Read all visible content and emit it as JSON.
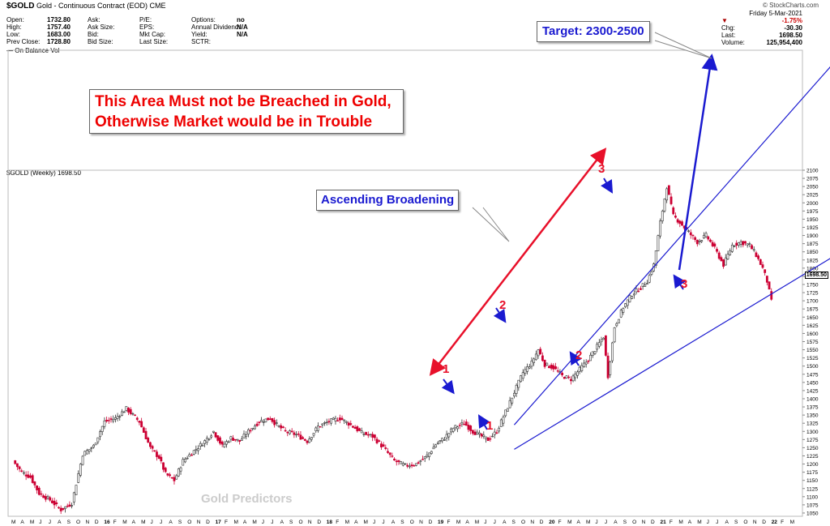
{
  "header": {
    "symbol": "$GOLD",
    "description": "Gold - Continuous Contract (EOD)",
    "exchange": "CME",
    "brand": "© StockCharts.com",
    "fields": [
      {
        "label": "Open:",
        "value": "1732.80"
      },
      {
        "label": "High:",
        "value": "1757.40"
      },
      {
        "label": "Low:",
        "value": "1683.00"
      },
      {
        "label": "Prev Close:",
        "value": "1728.80"
      },
      {
        "label": "Ask:",
        "value": ""
      },
      {
        "label": "Ask Size:",
        "value": ""
      },
      {
        "label": "Bid:",
        "value": ""
      },
      {
        "label": "Bid Size:",
        "value": ""
      },
      {
        "label": "P/E:",
        "value": ""
      },
      {
        "label": "EPS:",
        "value": ""
      },
      {
        "label": "Mkt Cap:",
        "value": ""
      },
      {
        "label": "Last Size:",
        "value": ""
      },
      {
        "label": "Options:",
        "value": "no"
      },
      {
        "label": "Annual Dividend:",
        "value": "N/A"
      },
      {
        "label": "Yield:",
        "value": "N/A"
      },
      {
        "label": "SCTR:",
        "value": ""
      }
    ],
    "date": "Friday 5-Mar-2021",
    "change_pct": "-1.75%",
    "right": [
      {
        "label": "Chg:",
        "value": "-30.30"
      },
      {
        "label": "Last:",
        "value": "1698.50"
      },
      {
        "label": "Volume:",
        "value": "125,954,400"
      }
    ]
  },
  "obv_label": "— On Balance Vol",
  "pane_label": "$GOLD (Weekly) 1698.50",
  "last_price_tag": "1698.50",
  "annotations": {
    "warning": "This Area Must not be Breached in Gold, Otherwise Market would be in Trouble",
    "pattern": "Ascending Broadening",
    "target": "Target: 2300-2500",
    "watermark": "Gold Predictors"
  },
  "colors": {
    "up": "#555555",
    "down": "#cc0033",
    "trend": "#1a1ad0",
    "arrow_red": "#e8102a"
  },
  "chart_data": {
    "type": "candlestick",
    "title": "$GOLD (Weekly)",
    "ylim": [
      1040,
      2100
    ],
    "y_ticks": [
      1050,
      1075,
      1100,
      1125,
      1150,
      1175,
      1200,
      1225,
      1250,
      1275,
      1300,
      1325,
      1350,
      1375,
      1400,
      1425,
      1450,
      1475,
      1500,
      1525,
      1550,
      1575,
      1600,
      1625,
      1650,
      1675,
      1700,
      1725,
      1750,
      1775,
      1800,
      1825,
      1850,
      1875,
      1900,
      1925,
      1950,
      1975,
      2000,
      2025,
      2050,
      2075,
      2100
    ],
    "x_ticks": [
      "M",
      "A",
      "M",
      "J",
      "J",
      "A",
      "S",
      "O",
      "N",
      "D",
      "16",
      "F",
      "M",
      "A",
      "M",
      "J",
      "J",
      "A",
      "S",
      "O",
      "N",
      "D",
      "17",
      "F",
      "M",
      "A",
      "M",
      "J",
      "J",
      "A",
      "S",
      "O",
      "N",
      "D",
      "18",
      "F",
      "M",
      "A",
      "M",
      "J",
      "J",
      "A",
      "S",
      "O",
      "N",
      "D",
      "19",
      "F",
      "M",
      "A",
      "M",
      "J",
      "J",
      "A",
      "S",
      "O",
      "N",
      "D",
      "20",
      "F",
      "M",
      "A",
      "M",
      "J",
      "J",
      "A",
      "S",
      "O",
      "N",
      "D",
      "21",
      "F",
      "M",
      "A",
      "M",
      "J",
      "J",
      "A",
      "S",
      "O",
      "N",
      "D",
      "22",
      "F",
      "M"
    ],
    "anchors": [
      [
        0,
        1210
      ],
      [
        4,
        1175
      ],
      [
        8,
        1160
      ],
      [
        12,
        1110
      ],
      [
        17,
        1090
      ],
      [
        22,
        1060
      ],
      [
        27,
        1080
      ],
      [
        32,
        1230
      ],
      [
        37,
        1255
      ],
      [
        42,
        1330
      ],
      [
        47,
        1340
      ],
      [
        52,
        1370
      ],
      [
        58,
        1330
      ],
      [
        63,
        1250
      ],
      [
        67,
        1220
      ],
      [
        70,
        1170
      ],
      [
        74,
        1150
      ],
      [
        78,
        1210
      ],
      [
        83,
        1240
      ],
      [
        88,
        1270
      ],
      [
        92,
        1300
      ],
      [
        96,
        1255
      ],
      [
        100,
        1280
      ],
      [
        104,
        1270
      ],
      [
        108,
        1300
      ],
      [
        113,
        1330
      ],
      [
        118,
        1340
      ],
      [
        121,
        1320
      ],
      [
        125,
        1300
      ],
      [
        130,
        1290
      ],
      [
        135,
        1270
      ],
      [
        140,
        1315
      ],
      [
        145,
        1330
      ],
      [
        150,
        1340
      ],
      [
        155,
        1320
      ],
      [
        160,
        1295
      ],
      [
        165,
        1285
      ],
      [
        170,
        1250
      ],
      [
        175,
        1210
      ],
      [
        180,
        1195
      ],
      [
        185,
        1200
      ],
      [
        190,
        1225
      ],
      [
        194,
        1260
      ],
      [
        198,
        1280
      ],
      [
        202,
        1310
      ],
      [
        207,
        1325
      ],
      [
        211,
        1300
      ],
      [
        215,
        1285
      ],
      [
        218,
        1275
      ],
      [
        222,
        1300
      ],
      [
        226,
        1360
      ],
      [
        230,
        1420
      ],
      [
        234,
        1480
      ],
      [
        238,
        1510
      ],
      [
        241,
        1550
      ],
      [
        244,
        1505
      ],
      [
        248,
        1495
      ],
      [
        252,
        1470
      ],
      [
        256,
        1460
      ],
      [
        260,
        1490
      ],
      [
        264,
        1520
      ],
      [
        268,
        1560
      ],
      [
        271,
        1590
      ],
      [
        273,
        1470
      ],
      [
        276,
        1620
      ],
      [
        280,
        1680
      ],
      [
        284,
        1720
      ],
      [
        288,
        1740
      ],
      [
        291,
        1760
      ],
      [
        294,
        1810
      ],
      [
        297,
        1940
      ],
      [
        300,
        2050
      ],
      [
        303,
        1960
      ],
      [
        306,
        1940
      ],
      [
        310,
        1910
      ],
      [
        314,
        1880
      ],
      [
        318,
        1900
      ],
      [
        322,
        1860
      ],
      [
        326,
        1810
      ],
      [
        330,
        1870
      ],
      [
        334,
        1880
      ],
      [
        338,
        1870
      ],
      [
        341,
        1840
      ],
      [
        344,
        1800
      ],
      [
        346,
        1760
      ],
      [
        348,
        1698
      ]
    ],
    "broadening_upper": [
      [
        230,
        1320
      ],
      [
        330,
        2060
      ]
    ],
    "broadening_lower": [
      [
        230,
        1245
      ],
      [
        385,
        1870
      ]
    ],
    "point_labels": [
      "1",
      "1",
      "2",
      "2",
      "3",
      "3"
    ]
  }
}
